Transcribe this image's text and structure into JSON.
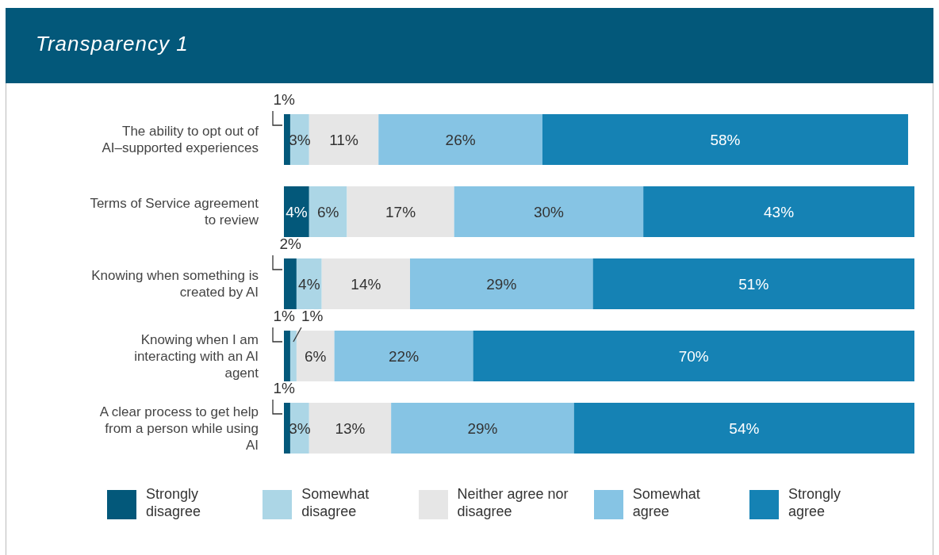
{
  "chart_data": {
    "type": "bar",
    "orientation": "horizontal",
    "stacked": true,
    "title": "Transparency 1",
    "categories": [
      "The ability to opt out of AI–supported experiences",
      "Terms of Service agreement to review",
      "Knowing when something is created by AI",
      "Knowing when I am interacting with an AI agent",
      "A clear process to get help from a person while using AI"
    ],
    "series": [
      {
        "name": "Strongly disagree",
        "color": "#03587a",
        "values": [
          1,
          4,
          2,
          1,
          1
        ],
        "value_labels": [
          "1%",
          "4%",
          "2%",
          "1%",
          "1%"
        ]
      },
      {
        "name": "Somewhat disagree",
        "color": "#acd6e6",
        "values": [
          3,
          6,
          4,
          1,
          3
        ],
        "value_labels": [
          "3%",
          "6%",
          "4%",
          "1%",
          "3%"
        ]
      },
      {
        "name": "Neither agree nor disagree",
        "color": "#e6e6e6",
        "values": [
          11,
          17,
          14,
          6,
          13
        ],
        "value_labels": [
          "11%",
          "17%",
          "14%",
          "6%",
          "13%"
        ]
      },
      {
        "name": "Somewhat agree",
        "color": "#86c4e4",
        "values": [
          26,
          30,
          29,
          22,
          29
        ],
        "value_labels": [
          "26%",
          "30%",
          "29%",
          "22%",
          "29%"
        ]
      },
      {
        "name": "Strongly agree",
        "color": "#1582b4",
        "values": [
          58,
          43,
          51,
          70,
          54
        ],
        "value_labels": [
          "58%",
          "43%",
          "51%",
          "70%",
          "54%"
        ]
      }
    ],
    "xlim": [
      0,
      100
    ],
    "tick_labels": "y",
    "grid": false,
    "legend": "bottom"
  }
}
